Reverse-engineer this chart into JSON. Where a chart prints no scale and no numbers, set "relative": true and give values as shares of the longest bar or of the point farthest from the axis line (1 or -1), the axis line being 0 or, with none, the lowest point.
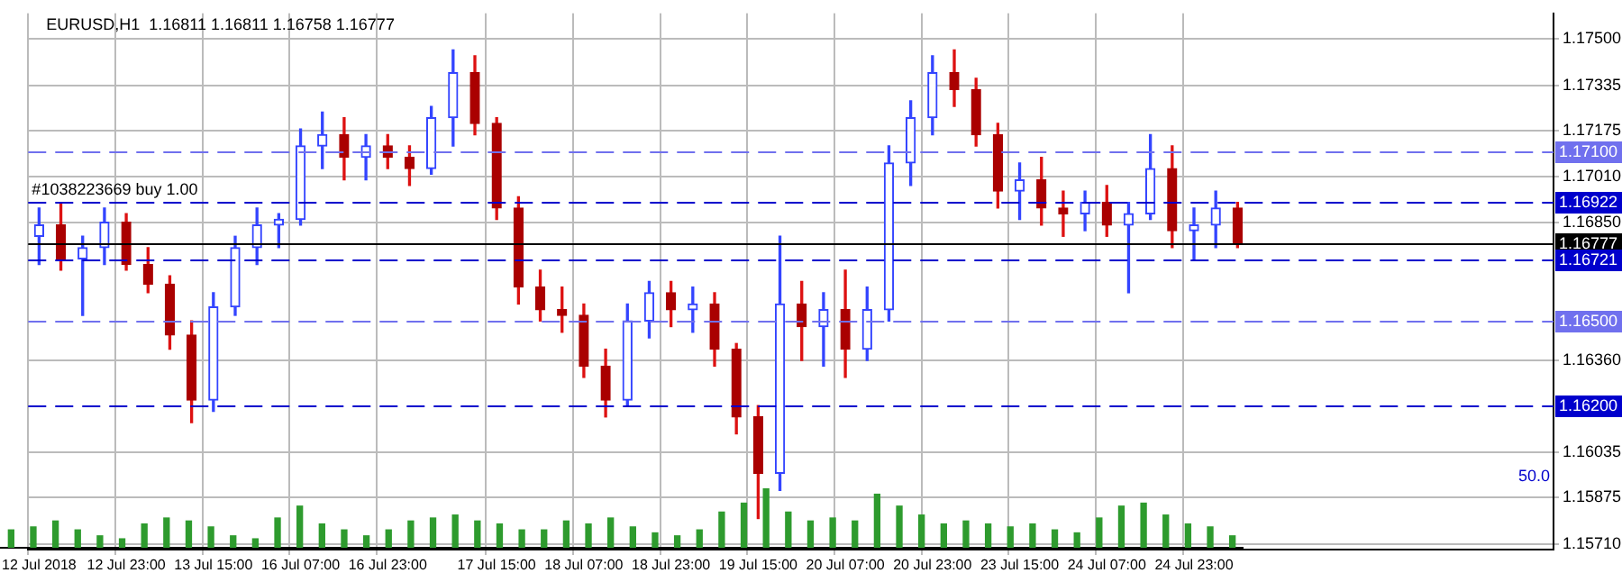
{
  "chart_data": [
    {
      "type": "candlestick",
      "title": "EURUSD,H1  1.16811 1.16811 1.16758 1.16777",
      "categories": [
        "12 Jul 2018",
        null,
        null,
        null,
        "12 Jul 23:00",
        null,
        null,
        null,
        "13 Jul 15:00",
        null,
        null,
        null,
        "16 Jul 07:00",
        null,
        null,
        null,
        "16 Jul 23:00",
        null,
        null,
        null,
        null,
        "17 Jul 15:00",
        null,
        null,
        null,
        "18 Jul 07:00",
        null,
        null,
        null,
        "18 Jul 23:00",
        null,
        null,
        null,
        "19 Jul 15:00",
        null,
        null,
        null,
        "20 Jul 07:00",
        null,
        null,
        null,
        "20 Jul 23:00",
        null,
        null,
        null,
        "23 Jul 15:00",
        null,
        null,
        null,
        "24 Jul 07:00",
        null,
        null,
        null,
        "24 Jul 23:00",
        null,
        null,
        null,
        null,
        null,
        null,
        null,
        null,
        null,
        null,
        null,
        null,
        null,
        null,
        null,
        null
      ],
      "ohlc": [
        [
          1.168,
          1.169,
          1.167,
          1.1684
        ],
        [
          1.1684,
          1.1692,
          1.1668,
          1.1672
        ],
        [
          1.1672,
          1.168,
          1.1652,
          1.1676
        ],
        [
          1.1676,
          1.169,
          1.167,
          1.1685
        ],
        [
          1.1685,
          1.1688,
          1.1668,
          1.167
        ],
        [
          1.167,
          1.1676,
          1.166,
          1.1663
        ],
        [
          1.1663,
          1.1666,
          1.164,
          1.1645
        ],
        [
          1.1645,
          1.165,
          1.1614,
          1.1622
        ],
        [
          1.1622,
          1.166,
          1.1618,
          1.1655
        ],
        [
          1.1655,
          1.168,
          1.1652,
          1.1676
        ],
        [
          1.1676,
          1.169,
          1.167,
          1.1684
        ],
        [
          1.1684,
          1.1688,
          1.1676,
          1.1686
        ],
        [
          1.1686,
          1.1718,
          1.1684,
          1.1712
        ],
        [
          1.1712,
          1.1724,
          1.1704,
          1.1716
        ],
        [
          1.1716,
          1.1722,
          1.17,
          1.1708
        ],
        [
          1.1708,
          1.1716,
          1.17,
          1.1712
        ],
        [
          1.1712,
          1.1716,
          1.1704,
          1.1708
        ],
        [
          1.1708,
          1.1712,
          1.1698,
          1.1704
        ],
        [
          1.1704,
          1.1726,
          1.1702,
          1.1722
        ],
        [
          1.1722,
          1.1746,
          1.1712,
          1.1738
        ],
        [
          1.1738,
          1.1744,
          1.1716,
          1.172
        ],
        [
          1.172,
          1.1722,
          1.1686,
          1.169
        ],
        [
          1.169,
          1.1694,
          1.1656,
          1.1662
        ],
        [
          1.1662,
          1.1668,
          1.165,
          1.1654
        ],
        [
          1.1654,
          1.1662,
          1.1646,
          1.1652
        ],
        [
          1.1652,
          1.1656,
          1.163,
          1.1634
        ],
        [
          1.1634,
          1.164,
          1.1616,
          1.1622
        ],
        [
          1.1622,
          1.1656,
          1.162,
          1.165
        ],
        [
          1.165,
          1.1664,
          1.1644,
          1.166
        ],
        [
          1.166,
          1.1664,
          1.1648,
          1.1654
        ],
        [
          1.1654,
          1.1662,
          1.1646,
          1.1656
        ],
        [
          1.1656,
          1.166,
          1.1634,
          1.164
        ],
        [
          1.164,
          1.1642,
          1.161,
          1.1616
        ],
        [
          1.1616,
          1.162,
          1.158,
          1.1596
        ],
        [
          1.1596,
          1.168,
          1.159,
          1.1656
        ],
        [
          1.1656,
          1.1664,
          1.1636,
          1.1648
        ],
        [
          1.1648,
          1.166,
          1.1634,
          1.1654
        ],
        [
          1.1654,
          1.1668,
          1.163,
          1.164
        ],
        [
          1.164,
          1.1662,
          1.1636,
          1.1654
        ],
        [
          1.1654,
          1.1712,
          1.165,
          1.1706
        ],
        [
          1.1706,
          1.1728,
          1.1698,
          1.1722
        ],
        [
          1.1722,
          1.1744,
          1.1716,
          1.1738
        ],
        [
          1.1738,
          1.1746,
          1.1726,
          1.1732
        ],
        [
          1.1732,
          1.1736,
          1.1712,
          1.1716
        ],
        [
          1.1716,
          1.172,
          1.169,
          1.1696
        ],
        [
          1.1696,
          1.1706,
          1.1686,
          1.17
        ],
        [
          1.17,
          1.1708,
          1.1684,
          1.169
        ],
        [
          1.169,
          1.1696,
          1.168,
          1.1688
        ],
        [
          1.1688,
          1.1696,
          1.1682,
          1.1692
        ],
        [
          1.1692,
          1.1698,
          1.168,
          1.1684
        ],
        [
          1.1684,
          1.1692,
          1.166,
          1.1688
        ],
        [
          1.1688,
          1.1716,
          1.1686,
          1.1704
        ],
        [
          1.1704,
          1.1712,
          1.1676,
          1.1682
        ],
        [
          1.1682,
          1.169,
          1.1672,
          1.1684
        ],
        [
          1.1684,
          1.1696,
          1.1676,
          1.169
        ],
        [
          1.169,
          1.1692,
          1.1676,
          1.16777
        ],
        null,
        null,
        null,
        null,
        null,
        null,
        null,
        null,
        null,
        null,
        null,
        null,
        null,
        null
      ],
      "ylim": [
        1.1569,
        1.1759
      ],
      "yticks": [
        {
          "value": 1.175,
          "label": "1.17500"
        },
        1.17335,
        1.17175,
        {
          "value": 1.1701,
          "label": "1.17010"
        },
        {
          "value": 1.1685,
          "label": "1.16850"
        },
        {
          "value": 1.1636,
          "label": "1.16360"
        },
        1.16035,
        1.15875,
        {
          "value": 1.1571,
          "label": "1.15710"
        }
      ],
      "grid": true,
      "ref_lines": [
        {
          "axis": "y",
          "value": 1.171,
          "label": "1.17100",
          "color": "#7070ee",
          "line_style": "dashed"
        },
        {
          "axis": "y",
          "value": 1.16922,
          "label": "1.16922",
          "color": "#0000cc",
          "line_style": "dashed"
        },
        {
          "axis": "y",
          "value": 1.16777,
          "label": "1.16777",
          "color": "#000000",
          "line_style": "solid"
        },
        {
          "axis": "y",
          "value": 1.16721,
          "label": "1.16721",
          "color": "#0000cc",
          "line_style": "dashed"
        },
        {
          "axis": "y",
          "value": 1.165,
          "label": "1.16500",
          "color": "#7070ee",
          "line_style": "dashed"
        },
        {
          "axis": "y",
          "value": 1.162,
          "label": "1.16200",
          "color": "#0000cc",
          "line_style": "dashed"
        }
      ],
      "annotations": [
        {
          "text": "#1038223669 buy 1.00",
          "x": "12 Jul 2018",
          "y": 1.16922
        },
        "50.0"
      ]
    },
    {
      "type": "bar",
      "relative": true,
      "color": "#2e9b2e",
      "categories": [
        null,
        null,
        null,
        null,
        null,
        null,
        null,
        null,
        null,
        null,
        null,
        null,
        null,
        null,
        null,
        null,
        null,
        null,
        null,
        null,
        null,
        null,
        null,
        null,
        null,
        null,
        null,
        null,
        null,
        null,
        null,
        null,
        null,
        null,
        null,
        null,
        null,
        null,
        null,
        null,
        null,
        null,
        null,
        null,
        null,
        null,
        null,
        null,
        null,
        null,
        null,
        null,
        null,
        null,
        null,
        null
      ],
      "values": [
        0.3,
        0.35,
        0.45,
        0.3,
        0.2,
        0.15,
        0.4,
        0.5,
        0.45,
        0.35,
        0.2,
        0.15,
        0.5,
        0.7,
        0.4,
        0.3,
        0.2,
        0.3,
        0.45,
        0.5,
        0.55,
        0.45,
        0.4,
        0.3,
        0.3,
        0.45,
        0.4,
        0.5,
        0.35,
        0.25,
        0.2,
        0.3,
        0.6,
        0.75,
        1,
        0.6,
        0.45,
        0.5,
        0.45,
        0.9,
        0.7,
        0.55,
        0.4,
        0.45,
        0.4,
        0.35,
        0.4,
        0.3,
        0.25,
        0.5,
        0.7,
        0.75,
        0.55,
        0.4,
        0.35,
        0.2
      ]
    }
  ]
}
